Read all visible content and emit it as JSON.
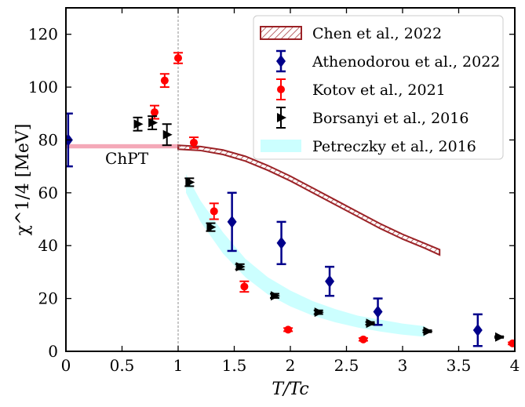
{
  "chart_data": {
    "type": "scatter",
    "xlabel": "T/Tc",
    "ylabel": "χ^1/4 [MeV]",
    "xlim": [
      0,
      4
    ],
    "ylim": [
      0,
      130
    ],
    "x_ticks": [
      0,
      0.5,
      1,
      1.5,
      2,
      2.5,
      3,
      3.5,
      4
    ],
    "x_tick_labels": [
      "0",
      "0.5",
      "1",
      "1.5",
      "2",
      "2.5",
      "3",
      "3.5",
      "4"
    ],
    "y_ticks": [
      0,
      20,
      40,
      60,
      80,
      100,
      120
    ],
    "y_tick_labels": [
      "0",
      "20",
      "40",
      "60",
      "80",
      "100",
      "120"
    ],
    "vertical_reference_line_x": 1,
    "legend_position": "top-right",
    "annotation": {
      "text": "ChPT",
      "x": 0.35,
      "y": 73
    },
    "chpt_band": {
      "x": [
        0,
        1
      ],
      "y_low": 76.8,
      "y_high": 78.4,
      "color": "#f4a9b8"
    },
    "series": [
      {
        "name": "Chen et al., 2022",
        "kind": "hatched_band",
        "color": "#9b2226",
        "points": [
          {
            "x": 1.0,
            "low": 76.5,
            "high": 78.0
          },
          {
            "x": 1.2,
            "low": 76.0,
            "high": 77.5
          },
          {
            "x": 1.4,
            "low": 74.5,
            "high": 76.2
          },
          {
            "x": 1.6,
            "low": 72.0,
            "high": 73.8
          },
          {
            "x": 1.8,
            "low": 68.5,
            "high": 70.3
          },
          {
            "x": 2.0,
            "low": 64.5,
            "high": 66.3
          },
          {
            "x": 2.2,
            "low": 60.0,
            "high": 61.8
          },
          {
            "x": 2.4,
            "low": 55.5,
            "high": 57.3
          },
          {
            "x": 2.6,
            "low": 51.0,
            "high": 52.8
          },
          {
            "x": 2.8,
            "low": 46.5,
            "high": 48.3
          },
          {
            "x": 3.0,
            "low": 42.5,
            "high": 44.3
          },
          {
            "x": 3.2,
            "low": 39.0,
            "high": 40.8
          },
          {
            "x": 3.33,
            "low": 36.5,
            "high": 38.5
          }
        ]
      },
      {
        "name": "Athenodorou et al., 2022",
        "kind": "points",
        "marker": "diamond",
        "color": "#00008b",
        "points": [
          {
            "x": 0.02,
            "y": 80,
            "err": 10
          },
          {
            "x": 1.48,
            "y": 49,
            "err": 11
          },
          {
            "x": 1.92,
            "y": 41,
            "err": 8
          },
          {
            "x": 2.35,
            "y": 26.5,
            "err": 5.5
          },
          {
            "x": 2.78,
            "y": 15,
            "err": 5
          },
          {
            "x": 3.67,
            "y": 8,
            "err": 6
          }
        ]
      },
      {
        "name": "Kotov et al., 2021",
        "kind": "points",
        "marker": "circle",
        "color": "#ff0000",
        "points": [
          {
            "x": 0.79,
            "y": 90.5,
            "err": 2.5
          },
          {
            "x": 0.88,
            "y": 102.5,
            "err": 2.5
          },
          {
            "x": 1.0,
            "y": 111,
            "err": 2
          },
          {
            "x": 1.14,
            "y": 79,
            "err": 2
          },
          {
            "x": 1.32,
            "y": 53,
            "err": 3
          },
          {
            "x": 1.59,
            "y": 24.5,
            "err": 2
          },
          {
            "x": 1.98,
            "y": 8.2,
            "err": 0.6
          },
          {
            "x": 2.65,
            "y": 4.5,
            "err": 0.5
          },
          {
            "x": 3.98,
            "y": 3,
            "err": 0.4
          }
        ]
      },
      {
        "name": "Borsanyi et al., 2016",
        "kind": "points",
        "marker": "triangle-right",
        "color": "#000000",
        "points": [
          {
            "x": 0.64,
            "y": 86,
            "err": 2.5
          },
          {
            "x": 0.77,
            "y": 86.5,
            "err": 2.5
          },
          {
            "x": 0.9,
            "y": 82,
            "err": 4
          },
          {
            "x": 1.1,
            "y": 64,
            "err": 1.5
          },
          {
            "x": 1.29,
            "y": 47,
            "err": 1.5
          },
          {
            "x": 1.55,
            "y": 32,
            "err": 1
          },
          {
            "x": 1.86,
            "y": 21,
            "err": 0.8
          },
          {
            "x": 2.25,
            "y": 14.8,
            "err": 0.7
          },
          {
            "x": 2.71,
            "y": 10.6,
            "err": 0.5
          },
          {
            "x": 3.22,
            "y": 7.6,
            "err": 0.4
          },
          {
            "x": 3.86,
            "y": 5.4,
            "err": 0.3
          }
        ]
      },
      {
        "name": "Petreczky et al., 2016",
        "kind": "band",
        "color": "#ccffff",
        "points": [
          {
            "x": 1.07,
            "low": 60,
            "high": 67
          },
          {
            "x": 1.2,
            "low": 49,
            "high": 57
          },
          {
            "x": 1.4,
            "low": 37,
            "high": 45
          },
          {
            "x": 1.6,
            "low": 28,
            "high": 35
          },
          {
            "x": 1.8,
            "low": 21.5,
            "high": 28
          },
          {
            "x": 2.0,
            "low": 17,
            "high": 23
          },
          {
            "x": 2.2,
            "low": 13.5,
            "high": 19
          },
          {
            "x": 2.4,
            "low": 11,
            "high": 16
          },
          {
            "x": 2.6,
            "low": 9,
            "high": 13.5
          },
          {
            "x": 2.8,
            "low": 7.5,
            "high": 12
          },
          {
            "x": 3.0,
            "low": 6.3,
            "high": 10.5
          },
          {
            "x": 3.2,
            "low": 5.5,
            "high": 9.5
          }
        ]
      }
    ]
  }
}
